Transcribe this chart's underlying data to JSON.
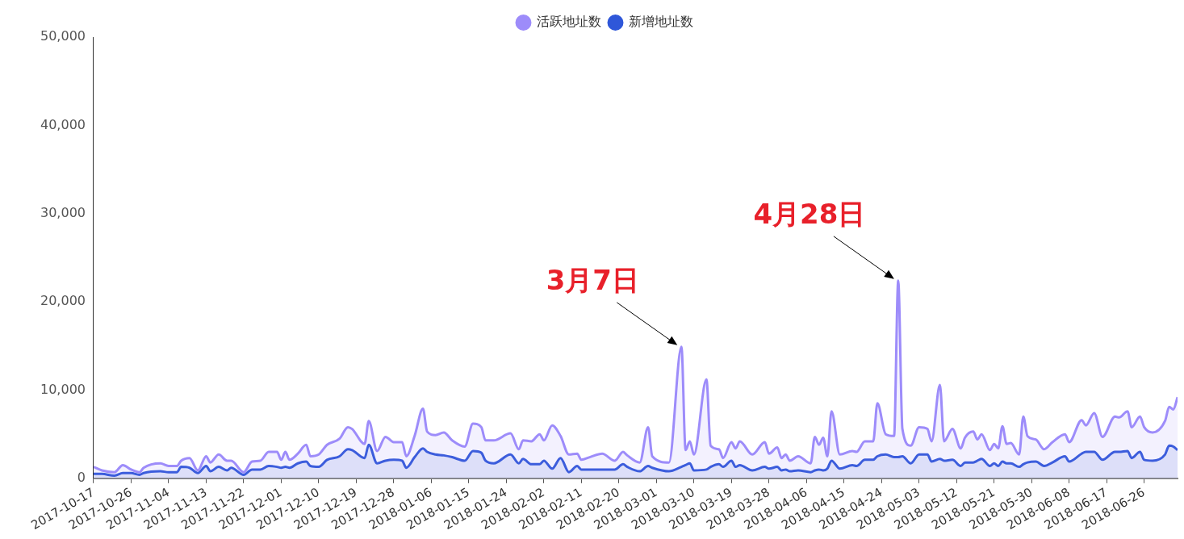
{
  "chart_data": {
    "type": "area",
    "legend": "top",
    "marker": "none",
    "line_style": "solid",
    "grid": false,
    "x": [
      "2017-10-17",
      "2017-10-19",
      "2017-10-22",
      "2017-10-24",
      "2017-10-26",
      "2017-10-28",
      "2017-10-29",
      "2017-11-02",
      "2017-11-04",
      "2017-11-06",
      "2017-11-07",
      "2017-11-09",
      "2017-11-11",
      "2017-11-13",
      "2017-11-14",
      "2017-11-16",
      "2017-11-18",
      "2017-11-19",
      "2017-11-22",
      "2017-11-24",
      "2017-11-26",
      "2017-11-28",
      "2017-11-30",
      "2017-12-01",
      "2017-12-02",
      "2017-12-03",
      "2017-12-05",
      "2017-12-07",
      "2017-12-08",
      "2017-12-10",
      "2017-12-12",
      "2017-12-15",
      "2017-12-17",
      "2017-12-18",
      "2017-12-21",
      "2017-12-22",
      "2017-12-24",
      "2017-12-26",
      "2017-12-28",
      "2017-12-30",
      "2017-12-31",
      "2018-01-02",
      "2018-01-04",
      "2018-01-05",
      "2018-01-07",
      "2018-01-09",
      "2018-01-11",
      "2018-01-14",
      "2018-01-16",
      "2018-01-18",
      "2018-01-19",
      "2018-01-21",
      "2018-01-25",
      "2018-01-27",
      "2018-01-28",
      "2018-01-30",
      "2018-02-01",
      "2018-02-02",
      "2018-02-04",
      "2018-02-06",
      "2018-02-08",
      "2018-02-10",
      "2018-02-11",
      "2018-02-13",
      "2018-02-16",
      "2018-02-19",
      "2018-02-21",
      "2018-02-22",
      "2018-02-25",
      "2018-02-27",
      "2018-02-28",
      "2018-03-04",
      "2018-03-07",
      "2018-03-08",
      "2018-03-09",
      "2018-03-10",
      "2018-03-13",
      "2018-03-14",
      "2018-03-16",
      "2018-03-17",
      "2018-03-19",
      "2018-03-20",
      "2018-03-21",
      "2018-03-24",
      "2018-03-27",
      "2018-03-28",
      "2018-03-30",
      "2018-03-31",
      "2018-04-01",
      "2018-04-02",
      "2018-04-04",
      "2018-04-07",
      "2018-04-08",
      "2018-04-09",
      "2018-04-10",
      "2018-04-11",
      "2018-04-12",
      "2018-04-14",
      "2018-04-17",
      "2018-04-18",
      "2018-04-20",
      "2018-04-22",
      "2018-04-23",
      "2018-04-25",
      "2018-04-27",
      "2018-04-28",
      "2018-04-29",
      "2018-05-01",
      "2018-05-03",
      "2018-05-05",
      "2018-05-06",
      "2018-05-08",
      "2018-05-09",
      "2018-05-11",
      "2018-05-13",
      "2018-05-14",
      "2018-05-16",
      "2018-05-17",
      "2018-05-18",
      "2018-05-20",
      "2018-05-21",
      "2018-05-22",
      "2018-05-23",
      "2018-05-24",
      "2018-05-25",
      "2018-05-27",
      "2018-05-28",
      "2018-05-29",
      "2018-05-31",
      "2018-06-02",
      "2018-06-04",
      "2018-06-07",
      "2018-06-08",
      "2018-06-11",
      "2018-06-12",
      "2018-06-14",
      "2018-06-16",
      "2018-06-19",
      "2018-06-20",
      "2018-06-22",
      "2018-06-23",
      "2018-06-25",
      "2018-06-26",
      "2018-06-28",
      "2018-07-01",
      "2018-07-02",
      "2018-07-03",
      "2018-07-04"
    ],
    "series": [
      {
        "name": "活跃地址数",
        "color": "#9d8cfa",
        "values": [
          1300,
          900,
          700,
          1500,
          1000,
          700,
          1200,
          1700,
          1400,
          1400,
          2000,
          2300,
          900,
          2500,
          1800,
          2700,
          2000,
          2000,
          700,
          1900,
          2000,
          3000,
          3000,
          2100,
          3000,
          2100,
          2800,
          3800,
          2500,
          2700,
          3800,
          4500,
          5800,
          5600,
          3900,
          6500,
          3100,
          4700,
          4100,
          4100,
          2500,
          4800,
          7900,
          5300,
          4900,
          5200,
          4300,
          3600,
          6200,
          5800,
          4300,
          4300,
          5100,
          3300,
          4300,
          4200,
          5000,
          4300,
          6000,
          4800,
          2700,
          2800,
          2100,
          2400,
          2800,
          2000,
          3000,
          2600,
          1800,
          5800,
          2500,
          1800,
          14900,
          3200,
          4200,
          2700,
          11200,
          3700,
          3300,
          2300,
          4100,
          3400,
          4200,
          2700,
          4100,
          2800,
          3500,
          2300,
          2700,
          2000,
          2500,
          1700,
          4700,
          3800,
          4600,
          2500,
          7600,
          2700,
          3100,
          3000,
          4200,
          4200,
          8500,
          5000,
          4800,
          22400,
          5600,
          3700,
          5800,
          5600,
          4200,
          10600,
          4200,
          5600,
          3400,
          4600,
          5300,
          4400,
          5000,
          3200,
          3900,
          3400,
          5900,
          3900,
          4000,
          2700,
          7000,
          4800,
          4400,
          3300,
          4100,
          5000,
          4100,
          6600,
          6000,
          7400,
          4700,
          7000,
          6900,
          7600,
          5800,
          7000,
          5800,
          5200,
          6500,
          8100,
          7800,
          9200
        ]
      },
      {
        "name": "新增地址数",
        "color": "#2f57d9",
        "values": [
          500,
          500,
          300,
          600,
          600,
          400,
          600,
          800,
          700,
          700,
          1300,
          1200,
          600,
          1400,
          800,
          1300,
          900,
          1200,
          400,
          1000,
          1000,
          1400,
          1300,
          1200,
          1300,
          1200,
          1700,
          1900,
          1400,
          1300,
          2100,
          2500,
          3300,
          3200,
          2300,
          3800,
          1700,
          2000,
          2100,
          2000,
          1200,
          2400,
          3400,
          3000,
          2700,
          2600,
          2400,
          2000,
          3100,
          2900,
          2000,
          1700,
          2700,
          1700,
          2200,
          1600,
          1600,
          2000,
          1100,
          2300,
          700,
          1400,
          1000,
          1000,
          1000,
          1000,
          1600,
          1300,
          800,
          1400,
          1200,
          800,
          1300,
          1500,
          1700,
          900,
          1000,
          1300,
          1600,
          1300,
          2000,
          1300,
          1500,
          900,
          1300,
          1100,
          1300,
          900,
          1000,
          800,
          900,
          700,
          900,
          1000,
          900,
          1100,
          2000,
          1100,
          1500,
          1400,
          2100,
          2100,
          2500,
          2700,
          2400,
          2400,
          2500,
          1700,
          2700,
          2700,
          1900,
          2200,
          2000,
          2100,
          1400,
          1800,
          1800,
          2000,
          2200,
          1400,
          1700,
          1400,
          1900,
          1700,
          1700,
          1300,
          1600,
          1800,
          1900,
          1400,
          1800,
          2500,
          1900,
          2800,
          3000,
          3000,
          2100,
          3000,
          3000,
          3100,
          2300,
          3000,
          2100,
          2000,
          2700,
          3700,
          3600,
          3200
        ]
      }
    ],
    "xlim": [
      "2017-10-17",
      "2018-07-04"
    ],
    "xticks": [
      "2017-10-17",
      "2017-10-26",
      "2017-11-04",
      "2017-11-13",
      "2017-11-22",
      "2017-12-01",
      "2017-12-10",
      "2017-12-19",
      "2017-12-28",
      "2018-01-06",
      "2018-01-15",
      "2018-01-24",
      "2018-02-02",
      "2018-02-11",
      "2018-02-20",
      "2018-03-01",
      "2018-03-10",
      "2018-03-19",
      "2018-03-28",
      "2018-04-06",
      "2018-04-15",
      "2018-04-24",
      "2018-05-03",
      "2018-05-12",
      "2018-05-21",
      "2018-05-30",
      "2018-06-08",
      "2018-06-17",
      "2018-06-26"
    ],
    "ylim": [
      0,
      50000
    ],
    "yticks": [
      {
        "value": 0,
        "label": "0"
      },
      {
        "value": 10000,
        "label": "10,000"
      },
      {
        "value": 20000,
        "label": "20,000"
      },
      {
        "value": 30000,
        "label": "30,000"
      },
      {
        "value": 40000,
        "label": "40,000"
      },
      {
        "value": 50000,
        "label": "50,000"
      }
    ],
    "annotations": [
      {
        "text": "3月7日",
        "x": "2018-03-07",
        "y": 14900
      },
      {
        "text": "4月28日",
        "x": "2018-04-28",
        "y": 22400
      }
    ]
  }
}
